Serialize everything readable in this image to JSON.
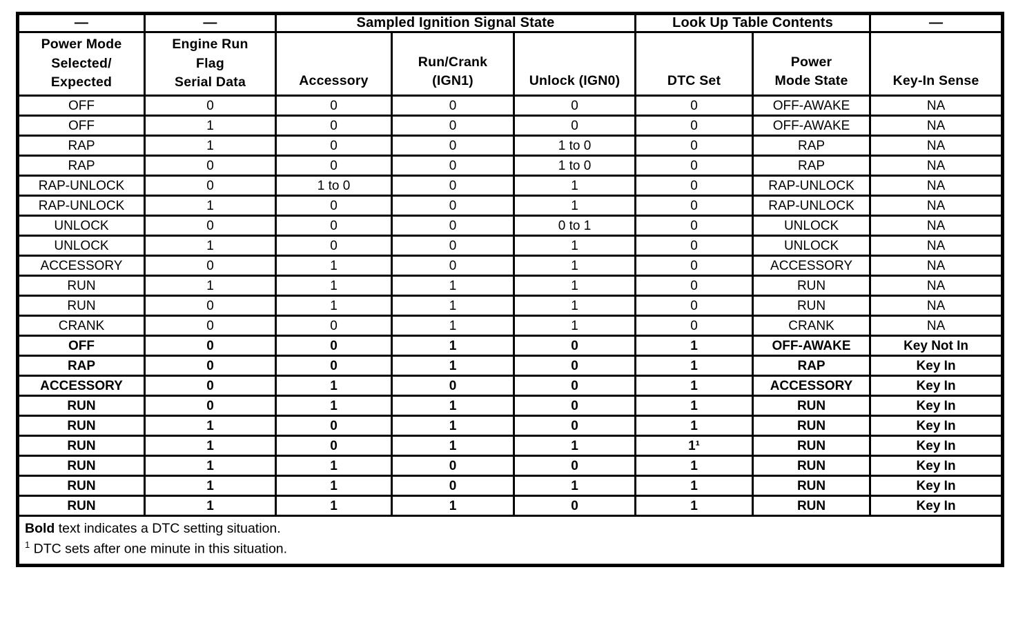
{
  "table": {
    "group_header": {
      "dash1": "—",
      "dash2": "—",
      "sampled_ignition": "Sampled Ignition Signal State",
      "lookup_contents": "Look Up Table Contents",
      "dash3": "—"
    },
    "columns": [
      "Power Mode\nSelected/\nExpected",
      "Engine Run\nFlag\nSerial Data",
      "Accessory",
      "Run/Crank\n(IGN1)",
      "Unlock (IGN0)",
      "DTC Set",
      "Power\nMode State",
      "Key-In Sense"
    ],
    "rows": [
      {
        "bold": false,
        "cells": [
          "OFF",
          "0",
          "0",
          "0",
          "0",
          "0",
          "OFF-AWAKE",
          "NA"
        ]
      },
      {
        "bold": false,
        "cells": [
          "OFF",
          "1",
          "0",
          "0",
          "0",
          "0",
          "OFF-AWAKE",
          "NA"
        ]
      },
      {
        "bold": false,
        "cells": [
          "RAP",
          "1",
          "0",
          "0",
          "1 to 0",
          "0",
          "RAP",
          "NA"
        ]
      },
      {
        "bold": false,
        "cells": [
          "RAP",
          "0",
          "0",
          "0",
          "1 to 0",
          "0",
          "RAP",
          "NA"
        ]
      },
      {
        "bold": false,
        "cells": [
          "RAP-UNLOCK",
          "0",
          "1 to 0",
          "0",
          "1",
          "0",
          "RAP-UNLOCK",
          "NA"
        ]
      },
      {
        "bold": false,
        "cells": [
          "RAP-UNLOCK",
          "1",
          "0",
          "0",
          "1",
          "0",
          "RAP-UNLOCK",
          "NA"
        ]
      },
      {
        "bold": false,
        "cells": [
          "UNLOCK",
          "0",
          "0",
          "0",
          "0 to 1",
          "0",
          "UNLOCK",
          "NA"
        ]
      },
      {
        "bold": false,
        "cells": [
          "UNLOCK",
          "1",
          "0",
          "0",
          "1",
          "0",
          "UNLOCK",
          "NA"
        ]
      },
      {
        "bold": false,
        "cells": [
          "ACCESSORY",
          "0",
          "1",
          "0",
          "1",
          "0",
          "ACCESSORY",
          "NA"
        ]
      },
      {
        "bold": false,
        "cells": [
          "RUN",
          "1",
          "1",
          "1",
          "1",
          "0",
          "RUN",
          "NA"
        ]
      },
      {
        "bold": false,
        "cells": [
          "RUN",
          "0",
          "1",
          "1",
          "1",
          "0",
          "RUN",
          "NA"
        ]
      },
      {
        "bold": false,
        "cells": [
          "CRANK",
          "0",
          "0",
          "1",
          "1",
          "0",
          "CRANK",
          "NA"
        ]
      },
      {
        "bold": true,
        "cells": [
          "OFF",
          "0",
          "0",
          "1",
          "0",
          "1",
          "OFF-AWAKE",
          "Key Not In"
        ]
      },
      {
        "bold": true,
        "cells": [
          "RAP",
          "0",
          "0",
          "1",
          "0",
          "1",
          "RAP",
          "Key In"
        ]
      },
      {
        "bold": true,
        "cells": [
          "ACCESSORY",
          "0",
          "1",
          "0",
          "0",
          "1",
          "ACCESSORY",
          "Key In"
        ]
      },
      {
        "bold": true,
        "cells": [
          "RUN",
          "0",
          "1",
          "1",
          "0",
          "1",
          "RUN",
          "Key In"
        ]
      },
      {
        "bold": true,
        "cells": [
          "RUN",
          "1",
          "0",
          "1",
          "0",
          "1",
          "RUN",
          "Key In"
        ]
      },
      {
        "bold": true,
        "cells": [
          "RUN",
          "1",
          "0",
          "1",
          "1",
          "1¹",
          "RUN",
          "Key In"
        ]
      },
      {
        "bold": true,
        "cells": [
          "RUN",
          "1",
          "1",
          "0",
          "0",
          "1",
          "RUN",
          "Key In"
        ]
      },
      {
        "bold": true,
        "cells": [
          "RUN",
          "1",
          "1",
          "0",
          "1",
          "1",
          "RUN",
          "Key In"
        ]
      },
      {
        "bold": true,
        "cells": [
          "RUN",
          "1",
          "1",
          "1",
          "0",
          "1",
          "RUN",
          "Key In"
        ]
      }
    ]
  },
  "footnotes": {
    "line1_bold": "Bold",
    "line1_rest": " text indicates a DTC setting situation.",
    "line2_sup": "1",
    "line2_rest": " DTC sets after one minute in this situation."
  }
}
